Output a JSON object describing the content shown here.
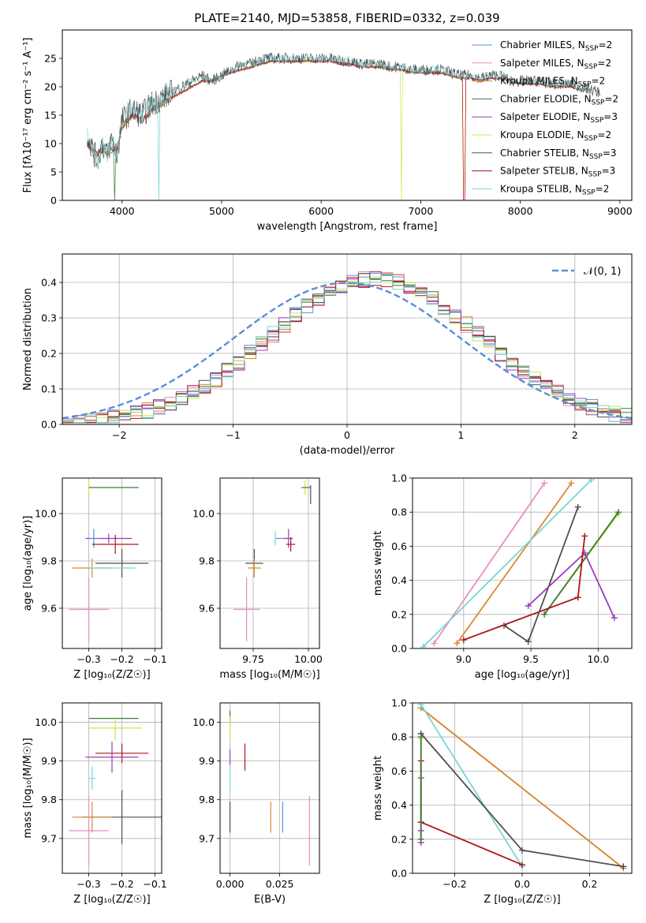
{
  "title": "PLATE=2140, MJD=53858, FIBERID=0332, z=0.039",
  "colors": {
    "chab_miles": "#5b8ed6",
    "salp_miles": "#e88dc5",
    "krou_miles": "#d98a2f",
    "chab_elodie": "#3a7a3a",
    "salp_elodie": "#9a3db8",
    "krou_elodie": "#c8e84a",
    "chab_stelib": "#505050",
    "salp_stelib": "#b0141c",
    "krou_stelib": "#76d6d6",
    "normal": "#5b8ed6"
  },
  "legend": [
    {
      "key": "chab_miles",
      "label": "Chabrier MILES, N",
      "sub": "SSP",
      "val": "=2"
    },
    {
      "key": "salp_miles",
      "label": "Salpeter MILES, N",
      "sub": "SSP",
      "val": "=2"
    },
    {
      "key": "krou_miles",
      "label": "Kroupa MILES, N",
      "sub": "SSP",
      "val": "=2"
    },
    {
      "key": "chab_elodie",
      "label": "Chabrier ELODIE, N",
      "sub": "SSP",
      "val": "=2"
    },
    {
      "key": "salp_elodie",
      "label": "Salpeter ELODIE, N",
      "sub": "SSP",
      "val": "=3"
    },
    {
      "key": "krou_elodie",
      "label": "Kroupa ELODIE, N",
      "sub": "SSP",
      "val": "=2"
    },
    {
      "key": "chab_stelib",
      "label": "Chabrier STELIB, N",
      "sub": "SSP",
      "val": "=3"
    },
    {
      "key": "salp_stelib",
      "label": "Salpeter STELIB, N",
      "sub": "SSP",
      "val": "=3"
    },
    {
      "key": "krou_stelib",
      "label": "Kroupa STELIB, N",
      "sub": "SSP",
      "val": "=2"
    }
  ],
  "chart_data": [
    {
      "id": "spectrum",
      "type": "line",
      "xlabel": "wavelength [Angstrom, rest frame]",
      "ylabel": "Flux [fλ10⁻¹⁷ erg cm⁻² s⁻¹ A⁻¹]",
      "xlim": [
        3400,
        9120
      ],
      "ylim": [
        0,
        30
      ],
      "xticks": [
        4000,
        5000,
        6000,
        7000,
        8000,
        9000
      ],
      "yticks": [
        0,
        5,
        10,
        15,
        20,
        25
      ],
      "data_x": [
        3650,
        3700,
        3750,
        3800,
        3850,
        3900,
        3950,
        4000,
        4100,
        4200,
        4300,
        4400,
        4500,
        4600,
        4700,
        4800,
        4900,
        5000,
        5100,
        5200,
        5300,
        5400,
        5500,
        5600,
        5700,
        5800,
        5900,
        6000,
        6100,
        6200,
        6300,
        6400,
        6500,
        6600,
        6700,
        6800,
        6900,
        7000,
        7100,
        7200,
        7300,
        7400,
        7500,
        7600,
        7700,
        7800,
        7900,
        8000,
        8100,
        8200,
        8300,
        8400,
        8500,
        8600,
        8700,
        8800
      ],
      "data_y": [
        12,
        9,
        7,
        10,
        8,
        11,
        8,
        14,
        16,
        15,
        17,
        18,
        19,
        20,
        21,
        22,
        21,
        22,
        23,
        24,
        24,
        25,
        25,
        25,
        25,
        25,
        25,
        25,
        25,
        24.5,
        24.5,
        24,
        24,
        24,
        23.5,
        23.5,
        23,
        23,
        23,
        23,
        22.5,
        22,
        22,
        21.5,
        22,
        22,
        21,
        21,
        21,
        21,
        20.5,
        20.5,
        20.5,
        20,
        19.5,
        19
      ],
      "model_y": [
        10,
        9,
        8,
        9,
        8,
        9,
        9,
        13,
        15,
        14,
        16,
        17,
        18,
        19,
        20,
        21,
        21,
        22,
        22.5,
        23,
        23.5,
        24,
        24.5,
        24.5,
        24.5,
        24.5,
        24.5,
        24.5,
        24.5,
        24,
        24,
        23.5,
        23.5,
        23.5,
        23,
        23,
        22.5,
        22.5,
        22.5,
        22.5,
        22,
        21.5,
        21.5,
        21,
        21.5,
        21.5,
        21,
        20.5,
        20.5,
        20.5,
        20,
        20,
        20,
        19.5,
        19.5,
        19
      ]
    },
    {
      "id": "residuals",
      "type": "histogram",
      "xlabel": "(data-model)/error",
      "ylabel": "Normed distribution",
      "xlim": [
        -2.5,
        2.5
      ],
      "ylim": [
        0,
        0.48
      ],
      "xticks": [
        -2,
        -1,
        0,
        1,
        2
      ],
      "yticks": [
        0.0,
        0.1,
        0.2,
        0.3,
        0.4
      ],
      "bin_width": 0.1,
      "bins_start": -2.5,
      "legend": "𝒩(0, 1)"
    },
    {
      "id": "age_Z",
      "type": "errorbar",
      "xlabel": "Z [log₁₀(Z/Z☉)]",
      "ylabel": "age  [log₁₀(age/yr)]",
      "xlim": [
        -0.38,
        -0.08
      ],
      "ylim": [
        9.43,
        10.15
      ],
      "xticks": [
        -0.3,
        -0.2,
        -0.1
      ],
      "yticks": [
        9.6,
        9.8,
        10.0
      ],
      "points": [
        {
          "key": "chab_miles",
          "x": -0.3,
          "y": 10.11,
          "xerr": 0.0,
          "yerr": 0.0
        },
        {
          "key": "krou_elodie",
          "x": -0.3,
          "y": 10.11,
          "xerr": 0.0,
          "yerr": 0.03
        },
        {
          "key": "chab_elodie",
          "x": -0.225,
          "y": 10.11,
          "xerr": 0.075,
          "yerr": 0.0
        },
        {
          "key": "salp_elodie",
          "x": -0.24,
          "y": 9.895,
          "xerr": 0.07,
          "yerr": 0.02
        },
        {
          "key": "chab_miles",
          "x": -0.285,
          "y": 9.895,
          "xerr": 0.015,
          "yerr": 0.04
        },
        {
          "key": "salp_stelib",
          "x": -0.22,
          "y": 9.87,
          "xerr": 0.07,
          "yerr": 0.04
        },
        {
          "key": "chab_stelib",
          "x": -0.2,
          "y": 9.79,
          "xerr": 0.08,
          "yerr": 0.06
        },
        {
          "key": "krou_miles",
          "x": -0.29,
          "y": 9.77,
          "xerr": 0.06,
          "yerr": 0.04
        },
        {
          "key": "krou_stelib",
          "x": -0.23,
          "y": 9.77,
          "xerr": 0.07,
          "yerr": 0.0
        },
        {
          "key": "salp_miles",
          "x": -0.3,
          "y": 9.595,
          "xerr": 0.06,
          "yerr": 0.135
        }
      ]
    },
    {
      "id": "age_mass",
      "type": "errorbar",
      "xlabel": "mass [log₁₀(M/M☉)]",
      "ylabel": "",
      "xlim": [
        9.6,
        10.05
      ],
      "ylim": [
        9.43,
        10.15
      ],
      "xticks": [
        9.75,
        10.0
      ],
      "xticklabels": [
        "9.75",
        "10.00"
      ],
      "yticks": [
        9.6,
        9.8,
        10.0
      ],
      "points": [
        {
          "key": "krou_elodie",
          "x": 9.985,
          "y": 10.11,
          "xerr": 0.02,
          "yerr": 0.03
        },
        {
          "key": "chab_elodie",
          "x": 9.99,
          "y": 10.11,
          "xerr": 0.02,
          "yerr": 0.0
        },
        {
          "key": "chab_stelib",
          "x": 10.01,
          "y": 10.08,
          "xerr": 0.0,
          "yerr": 0.04
        },
        {
          "key": "chab_miles",
          "x": 9.88,
          "y": 9.895,
          "xerr": 0.03,
          "yerr": 0.0
        },
        {
          "key": "krou_stelib",
          "x": 9.85,
          "y": 9.895,
          "xerr": 0.0,
          "yerr": 0.03
        },
        {
          "key": "salp_elodie",
          "x": 9.91,
          "y": 9.895,
          "xerr": 0.02,
          "yerr": 0.04
        },
        {
          "key": "salp_stelib",
          "x": 9.92,
          "y": 9.87,
          "xerr": 0.02,
          "yerr": 0.03
        },
        {
          "key": "chab_stelib",
          "x": 9.755,
          "y": 9.79,
          "xerr": 0.04,
          "yerr": 0.06
        },
        {
          "key": "krou_miles",
          "x": 9.755,
          "y": 9.77,
          "xerr": 0.03,
          "yerr": 0.04
        },
        {
          "key": "salp_miles",
          "x": 9.72,
          "y": 9.595,
          "xerr": 0.06,
          "yerr": 0.135
        }
      ]
    },
    {
      "id": "weight_age",
      "type": "line",
      "xlabel": "age  [log₁₀(age/yr)]",
      "ylabel": "mass weight",
      "xlim": [
        8.62,
        10.25
      ],
      "ylim": [
        0,
        1
      ],
      "xticks": [
        9.0,
        9.5,
        10.0
      ],
      "xticklabels": [
        "9.0",
        "9.5",
        "10.0"
      ],
      "yticks": [
        0.0,
        0.2,
        0.4,
        0.6,
        0.8,
        1.0
      ],
      "series": [
        {
          "key": "salp_miles",
          "x": [
            8.78,
            9.6
          ],
          "y": [
            0.03,
            0.97
          ]
        },
        {
          "key": "krou_miles",
          "x": [
            8.95,
            9.8
          ],
          "y": [
            0.03,
            0.97
          ]
        },
        {
          "key": "krou_stelib",
          "x": [
            8.7,
            9.95
          ],
          "y": [
            0.01,
            0.99
          ]
        },
        {
          "key": "chab_stelib",
          "x": [
            9.3,
            9.48,
            9.85
          ],
          "y": [
            0.135,
            0.04,
            0.83
          ]
        },
        {
          "key": "krou_elodie",
          "x": [
            9.6,
            10.15
          ],
          "y": [
            0.2,
            0.79
          ]
        },
        {
          "key": "chab_elodie",
          "x": [
            9.6,
            10.15
          ],
          "y": [
            0.2,
            0.8
          ]
        },
        {
          "key": "salp_elodie",
          "x": [
            9.48,
            9.9,
            10.12
          ],
          "y": [
            0.25,
            0.56,
            0.18
          ]
        },
        {
          "key": "salp_stelib",
          "x": [
            9.0,
            9.85,
            9.9
          ],
          "y": [
            0.05,
            0.3,
            0.66
          ]
        }
      ]
    },
    {
      "id": "mass_Z",
      "type": "errorbar",
      "xlabel": "Z [log₁₀(Z/Z☉)]",
      "ylabel": "mass [log₁₀(M/M☉)]",
      "xlim": [
        -0.38,
        -0.08
      ],
      "ylim": [
        9.61,
        10.05
      ],
      "xticks": [
        -0.3,
        -0.2,
        -0.1
      ],
      "yticks": [
        9.7,
        9.8,
        9.9,
        10.0
      ],
      "points": [
        {
          "key": "chab_elodie",
          "x": -0.225,
          "y": 10.01,
          "xerr": 0.075,
          "yerr": 0.0
        },
        {
          "key": "krou_elodie",
          "x": -0.22,
          "y": 9.985,
          "xerr": 0.08,
          "yerr": 0.03
        },
        {
          "key": "salp_stelib",
          "x": -0.2,
          "y": 9.92,
          "xerr": 0.08,
          "yerr": 0.025
        },
        {
          "key": "salp_elodie",
          "x": -0.23,
          "y": 9.91,
          "xerr": 0.08,
          "yerr": 0.04
        },
        {
          "key": "krou_stelib",
          "x": -0.29,
          "y": 9.855,
          "xerr": 0.01,
          "yerr": 0.03
        },
        {
          "key": "chab_stelib",
          "x": -0.2,
          "y": 9.755,
          "xerr": 0.12,
          "yerr": 0.07
        },
        {
          "key": "krou_miles",
          "x": -0.29,
          "y": 9.755,
          "xerr": 0.06,
          "yerr": 0.04
        },
        {
          "key": "salp_miles",
          "x": -0.3,
          "y": 9.72,
          "xerr": 0.06,
          "yerr": 0.09
        }
      ]
    },
    {
      "id": "mass_ebv",
      "type": "errorbar",
      "xlabel": "E(B-V)",
      "ylabel": "",
      "xlim": [
        -0.005,
        0.045
      ],
      "ylim": [
        9.61,
        10.05
      ],
      "xticks": [
        0.0,
        0.025
      ],
      "xticklabels": [
        "0.000",
        "0.025"
      ],
      "yticks": [
        9.7,
        9.8,
        9.9,
        10.0
      ],
      "points": [
        {
          "key": "chab_elodie",
          "x": 0.0,
          "y": 10.01,
          "xerr": 0.0,
          "yerr": 0.02
        },
        {
          "key": "krou_elodie",
          "x": 0.0,
          "y": 9.985,
          "xerr": 0.0,
          "yerr": 0.03
        },
        {
          "key": "salp_elodie",
          "x": 0.0,
          "y": 9.91,
          "xerr": 0.0,
          "yerr": 0.02
        },
        {
          "key": "salp_stelib",
          "x": 0.0075,
          "y": 9.91,
          "xerr": 0.0,
          "yerr": 0.035
        },
        {
          "key": "krou_stelib",
          "x": 0.0,
          "y": 9.855,
          "xerr": 0.0,
          "yerr": 0.03
        },
        {
          "key": "chab_stelib",
          "x": 0.0,
          "y": 9.755,
          "xerr": 0.0,
          "yerr": 0.04
        },
        {
          "key": "krou_miles",
          "x": 0.0205,
          "y": 9.755,
          "xerr": 0.0,
          "yerr": 0.04
        },
        {
          "key": "chab_miles",
          "x": 0.0265,
          "y": 9.755,
          "xerr": 0.0,
          "yerr": 0.04
        },
        {
          "key": "salp_miles",
          "x": 0.04,
          "y": 9.72,
          "xerr": 0.0,
          "yerr": 0.09
        }
      ]
    },
    {
      "id": "weight_Z",
      "type": "line",
      "xlabel": "Z [log₁₀(Z/Z☉)]",
      "ylabel": "mass weight",
      "xlim": [
        -0.325,
        0.325
      ],
      "ylim": [
        0,
        1
      ],
      "xticks": [
        -0.2,
        0.0,
        0.2
      ],
      "xticklabels": [
        "−0.2",
        "0.0",
        "0.2"
      ],
      "yticks": [
        0.0,
        0.2,
        0.4,
        0.6,
        0.8,
        1.0
      ],
      "series": [
        {
          "key": "salp_miles",
          "x": [
            -0.3,
            0.3
          ],
          "y": [
            0.97,
            0.03
          ]
        },
        {
          "key": "krou_miles",
          "x": [
            -0.3,
            0.3
          ],
          "y": [
            0.97,
            0.03
          ]
        },
        {
          "key": "krou_stelib",
          "x": [
            -0.3,
            0.0
          ],
          "y": [
            0.99,
            0.04
          ]
        },
        {
          "key": "chab_stelib",
          "x": [
            -0.3,
            0.0,
            0.3
          ],
          "y": [
            0.82,
            0.135,
            0.04
          ]
        },
        {
          "key": "salp_stelib",
          "x": [
            -0.3,
            -0.3,
            -0.3,
            0.0
          ],
          "y": [
            0.66,
            0.3,
            0.3,
            0.05
          ]
        },
        {
          "key": "salp_elodie",
          "x": [
            -0.3,
            -0.3,
            -0.3
          ],
          "y": [
            0.56,
            0.25,
            0.18
          ]
        },
        {
          "key": "krou_elodie",
          "x": [
            -0.3,
            -0.3
          ],
          "y": [
            0.79,
            0.2
          ]
        },
        {
          "key": "chab_elodie",
          "x": [
            -0.3,
            -0.3
          ],
          "y": [
            0.8,
            0.2
          ]
        }
      ]
    }
  ]
}
